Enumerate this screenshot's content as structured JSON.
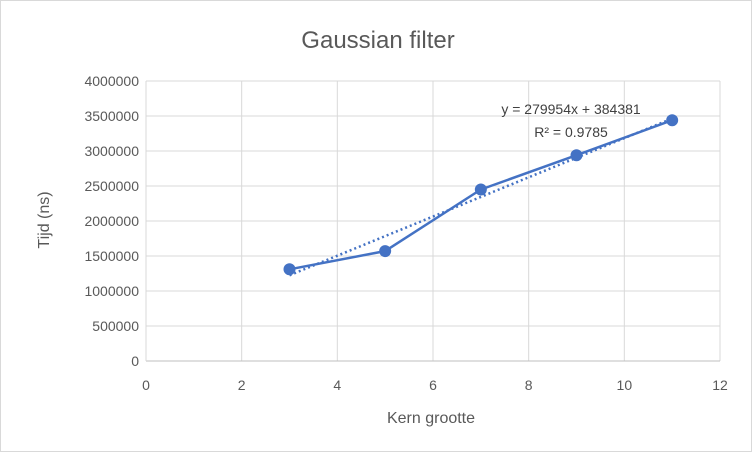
{
  "chart_data": {
    "type": "scatter",
    "title": "Gaussian filter",
    "xlabel": "Kern grootte",
    "ylabel": "Tijd (ns)",
    "xlim": [
      0,
      12
    ],
    "ylim": [
      0,
      4000000
    ],
    "x_ticks": [
      0,
      2,
      4,
      6,
      8,
      10,
      12
    ],
    "y_ticks": [
      0,
      500000,
      1000000,
      1500000,
      2000000,
      2500000,
      3000000,
      3500000,
      4000000
    ],
    "x_tick_labels": [
      "0",
      "2",
      "4",
      "6",
      "8",
      "10",
      "12"
    ],
    "y_tick_labels": [
      "0",
      "500000",
      "1000000",
      "1500000",
      "2000000",
      "2500000",
      "3000000",
      "3500000",
      "4000000"
    ],
    "grid": true,
    "series": [
      {
        "x": [
          3,
          5,
          7,
          9,
          11
        ],
        "y": [
          1310000,
          1570000,
          2450000,
          2940000,
          3440000
        ],
        "color": "#4472c4",
        "style": "line-with-markers"
      }
    ],
    "trendline": {
      "type": "linear",
      "slope": 279954,
      "intercept": 384381,
      "x_range": [
        3,
        11
      ],
      "color": "#4472c4",
      "style": "dotted",
      "equation_label": "y = 279954x + 384381",
      "r2_label": "R² = 0.9785"
    }
  }
}
